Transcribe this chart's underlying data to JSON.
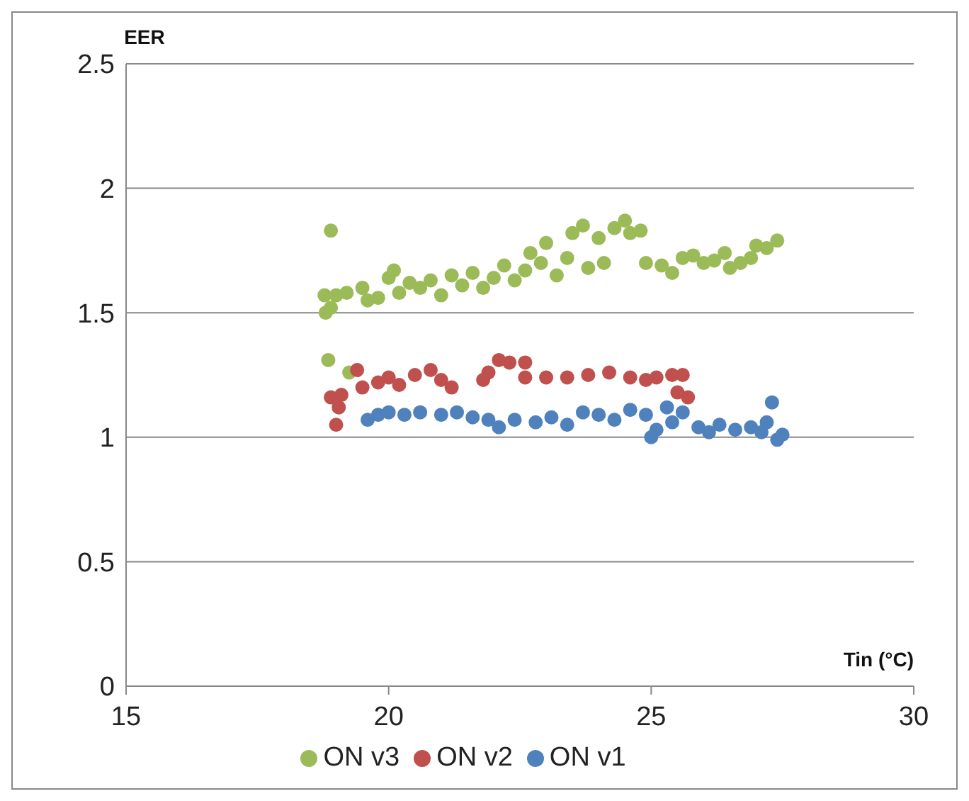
{
  "chart_data": {
    "type": "scatter",
    "xlabel": "Tin (°C)",
    "ylabel": "EER",
    "xlim": [
      15,
      30
    ],
    "xticks": [
      15,
      20,
      25,
      30
    ],
    "ylim": [
      0,
      2.5
    ],
    "yticks": [
      0,
      0.5,
      1,
      1.5,
      2,
      2.5
    ],
    "grid": "y",
    "legend": "bottom",
    "marker": "circle",
    "series": [
      {
        "name": "ON v3",
        "color": "#9bbb59",
        "x": [
          18.8,
          18.78,
          18.9,
          18.9,
          18.85,
          19.0,
          19.2,
          19.5,
          19.6,
          19.8,
          20.0,
          20.1,
          20.2,
          20.4,
          20.6,
          20.8,
          21.0,
          21.2,
          21.4,
          21.6,
          21.8,
          22.0,
          22.2,
          22.4,
          22.6,
          22.7,
          22.9,
          23.0,
          23.2,
          23.4,
          23.5,
          23.7,
          23.8,
          24.0,
          24.1,
          24.3,
          24.5,
          24.6,
          24.8,
          24.9,
          25.2,
          25.4,
          25.6,
          25.8,
          26.0,
          26.2,
          26.4,
          26.5,
          26.7,
          26.9,
          27.0,
          27.2,
          27.4,
          19.25
        ],
        "values": [
          1.5,
          1.57,
          1.52,
          1.83,
          1.31,
          1.57,
          1.58,
          1.6,
          1.55,
          1.56,
          1.64,
          1.67,
          1.58,
          1.62,
          1.6,
          1.63,
          1.57,
          1.65,
          1.61,
          1.66,
          1.6,
          1.64,
          1.69,
          1.63,
          1.67,
          1.74,
          1.7,
          1.78,
          1.65,
          1.72,
          1.82,
          1.85,
          1.68,
          1.8,
          1.7,
          1.84,
          1.87,
          1.82,
          1.83,
          1.7,
          1.69,
          1.66,
          1.72,
          1.73,
          1.7,
          1.71,
          1.74,
          1.68,
          1.7,
          1.72,
          1.77,
          1.76,
          1.79,
          1.26
        ]
      },
      {
        "name": "ON v2",
        "color": "#c0504d",
        "x": [
          18.9,
          19.0,
          19.05,
          19.1,
          19.4,
          19.5,
          19.8,
          20.0,
          20.2,
          20.5,
          20.8,
          21.0,
          21.2,
          21.8,
          21.9,
          22.1,
          22.3,
          22.6,
          22.6,
          23.0,
          23.4,
          23.8,
          24.2,
          24.6,
          24.9,
          25.1,
          25.4,
          25.6,
          25.7,
          25.5
        ],
        "values": [
          1.16,
          1.05,
          1.12,
          1.17,
          1.27,
          1.2,
          1.22,
          1.24,
          1.21,
          1.25,
          1.27,
          1.23,
          1.2,
          1.23,
          1.26,
          1.31,
          1.3,
          1.3,
          1.24,
          1.24,
          1.24,
          1.25,
          1.26,
          1.24,
          1.23,
          1.24,
          1.25,
          1.25,
          1.16,
          1.18
        ]
      },
      {
        "name": "ON v1",
        "color": "#4f81bd",
        "x": [
          19.6,
          19.8,
          20.0,
          20.3,
          20.6,
          21.0,
          21.3,
          21.6,
          21.9,
          22.1,
          22.4,
          22.8,
          23.1,
          23.4,
          23.7,
          24.0,
          24.3,
          24.6,
          24.9,
          25.1,
          25.3,
          25.4,
          25.6,
          25.9,
          26.1,
          26.3,
          26.6,
          26.9,
          27.1,
          27.2,
          27.3,
          27.4,
          27.5,
          25.0
        ],
        "values": [
          1.07,
          1.09,
          1.1,
          1.09,
          1.1,
          1.09,
          1.1,
          1.08,
          1.07,
          1.04,
          1.07,
          1.06,
          1.08,
          1.05,
          1.1,
          1.09,
          1.07,
          1.11,
          1.09,
          1.03,
          1.12,
          1.06,
          1.1,
          1.04,
          1.02,
          1.05,
          1.03,
          1.04,
          1.02,
          1.06,
          1.14,
          0.99,
          1.01,
          1.0
        ]
      }
    ]
  }
}
